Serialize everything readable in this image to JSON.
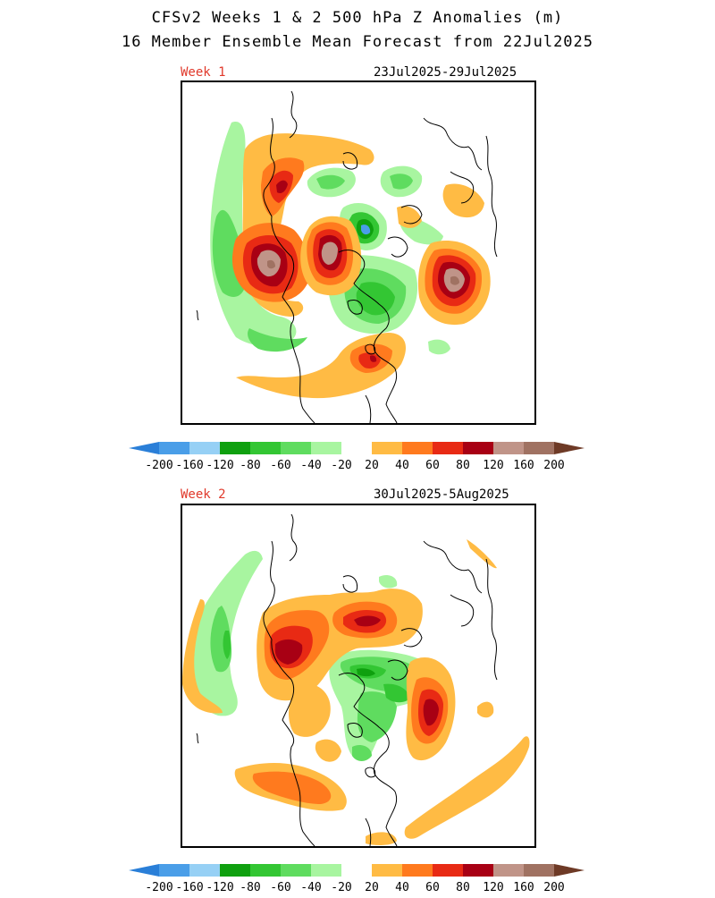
{
  "header": {
    "title_line1": "CFSv2 Weeks 1 & 2 500 hPa Z Anomalies (m)",
    "title_line2": "16 Member Ensemble Mean Forecast from 22Jul2025"
  },
  "panels": [
    {
      "week_label": "Week 1",
      "date_range": "23Jul2025-29Jul2025"
    },
    {
      "week_label": "Week 2",
      "date_range": "30Jul2025-5Aug2025"
    }
  ],
  "colorbar": {
    "tick_labels": [
      "-200",
      "-160",
      "-120",
      "-80",
      "-60",
      "-40",
      "-20",
      "20",
      "40",
      "60",
      "80",
      "120",
      "160",
      "200"
    ],
    "colors": [
      "#2a7fd8",
      "#4a9ee8",
      "#96d0f5",
      "#0fa00f",
      "#33c633",
      "#5fdc5f",
      "#a8f5a0",
      "#ffffff",
      "#ffbb44",
      "#ff7a1e",
      "#e82a14",
      "#a80014",
      "#c09488",
      "#a07262",
      "#6e3a26"
    ]
  },
  "map_style": {
    "coast_color": "#000000"
  }
}
